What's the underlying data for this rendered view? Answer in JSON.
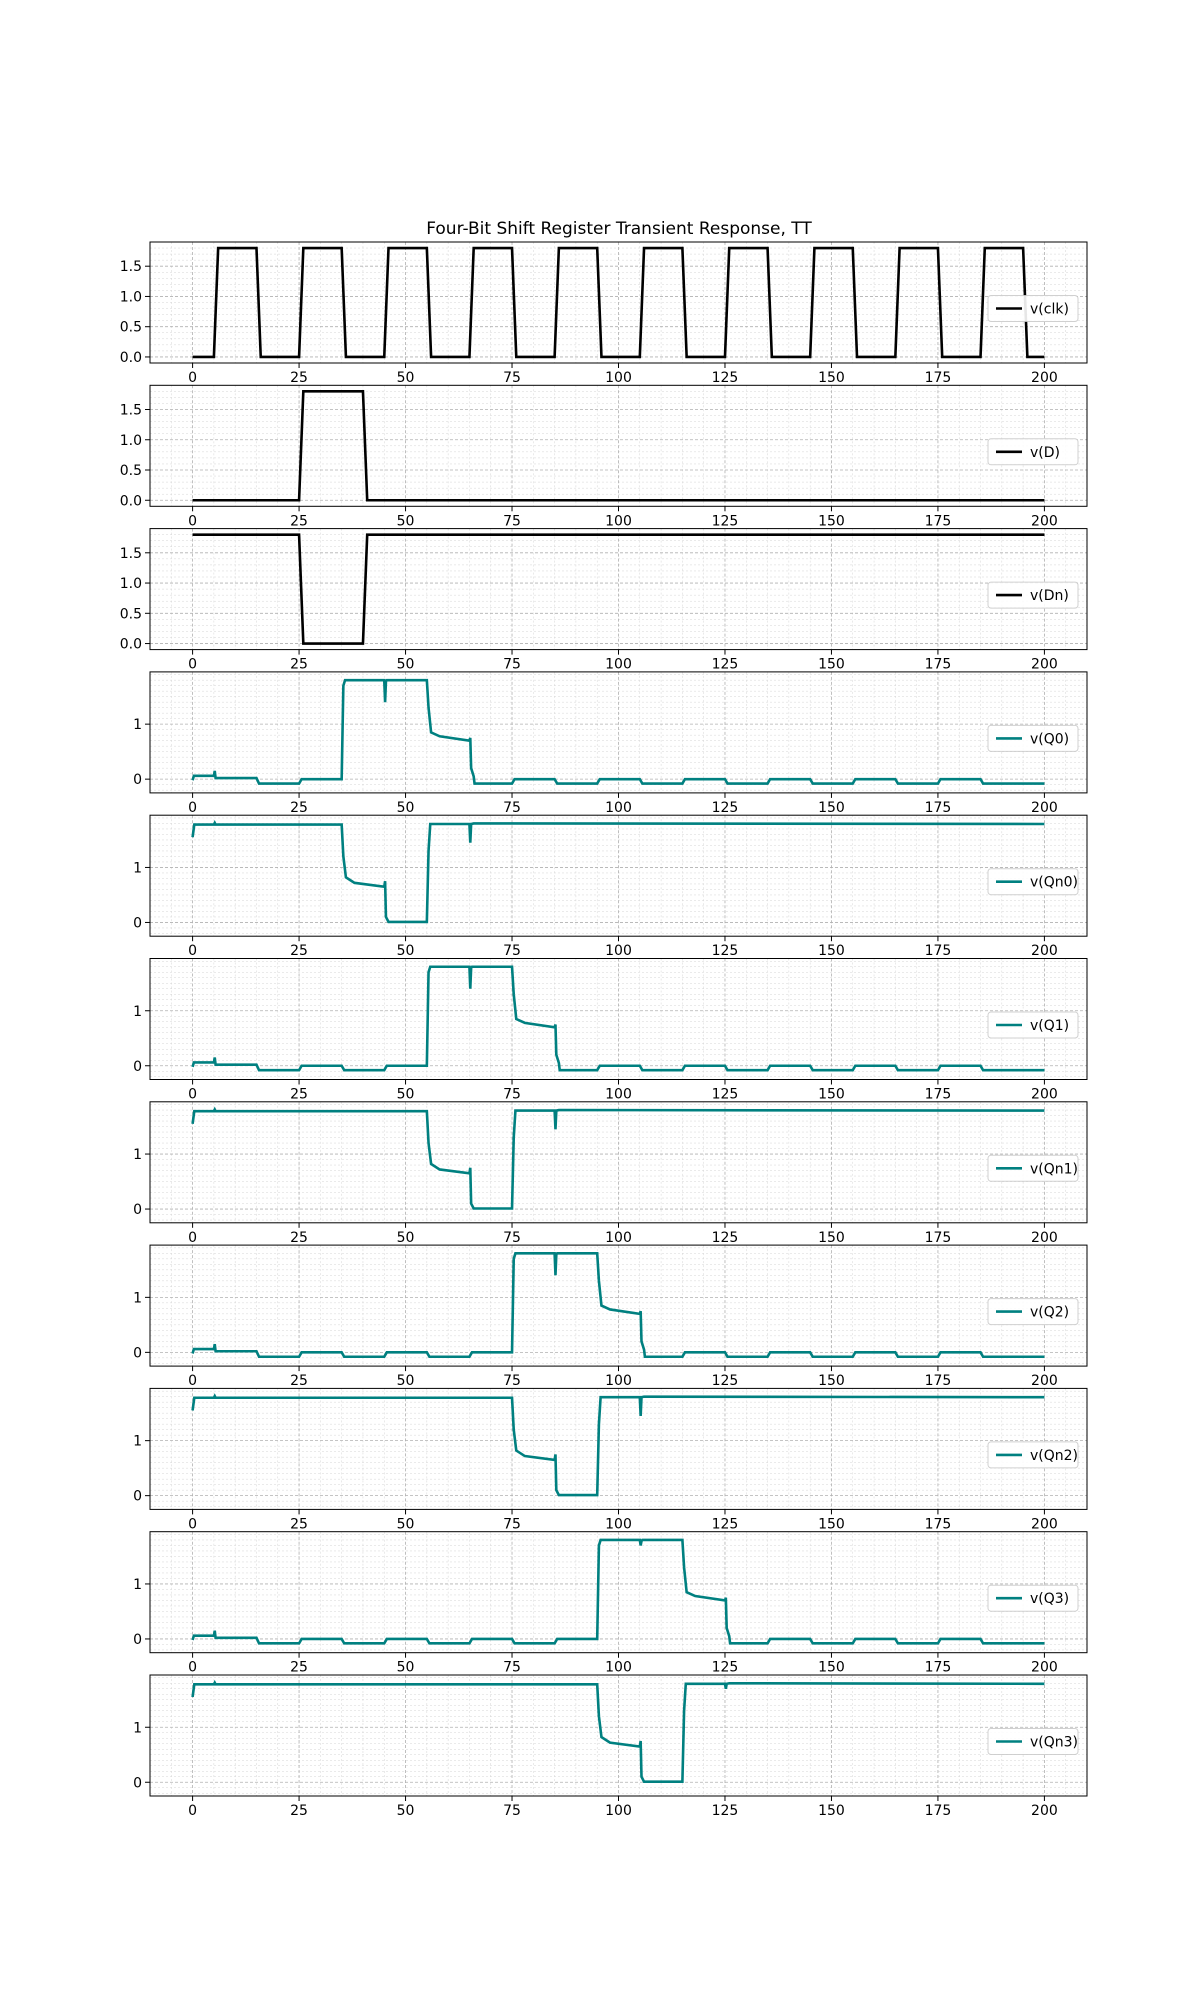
{
  "chart_data": {
    "type": "line",
    "title": "Four-Bit Shift Register Transient Response, TT",
    "xlabel": "",
    "ylabel": "",
    "xlim": [
      -10,
      210
    ],
    "xticks": [
      "0",
      "25",
      "50",
      "75",
      "100",
      "125",
      "150",
      "175",
      "200"
    ],
    "grid": true,
    "legend_placement": "right",
    "panels": [
      {
        "name": "v(clk)",
        "color": "#000000",
        "ylim": [
          -0.1,
          1.9
        ],
        "yticks": [
          "0.0",
          "0.5",
          "1.0",
          "1.5"
        ],
        "x": [
          0,
          5,
          6,
          15,
          16,
          25,
          26,
          35,
          36,
          45,
          46,
          55,
          56,
          65,
          66,
          75,
          76,
          85,
          86,
          95,
          96,
          105,
          106,
          115,
          116,
          125,
          126,
          135,
          136,
          145,
          146,
          155,
          156,
          165,
          166,
          175,
          176,
          185,
          186,
          195,
          196,
          200
        ],
        "y": [
          0,
          0,
          1.8,
          1.8,
          0,
          0,
          1.8,
          1.8,
          0,
          0,
          1.8,
          1.8,
          0,
          0,
          1.8,
          1.8,
          0,
          0,
          1.8,
          1.8,
          0,
          0,
          1.8,
          1.8,
          0,
          0,
          1.8,
          1.8,
          0,
          0,
          1.8,
          1.8,
          0,
          0,
          1.8,
          1.8,
          0,
          0,
          1.8,
          1.8,
          0,
          0
        ]
      },
      {
        "name": "v(D)",
        "color": "#000000",
        "ylim": [
          -0.1,
          1.9
        ],
        "yticks": [
          "0.0",
          "0.5",
          "1.0",
          "1.5"
        ],
        "x": [
          0,
          25,
          26,
          40,
          41,
          200
        ],
        "y": [
          0,
          0,
          1.8,
          1.8,
          0,
          0
        ]
      },
      {
        "name": "v(Dn)",
        "color": "#000000",
        "ylim": [
          -0.1,
          1.9
        ],
        "yticks": [
          "0.0",
          "0.5",
          "1.0",
          "1.5"
        ],
        "x": [
          0,
          25,
          26,
          40,
          41,
          200
        ],
        "y": [
          1.8,
          1.8,
          0,
          0,
          1.8,
          1.8
        ]
      },
      {
        "name": "v(Q0)",
        "color": "#008080",
        "ylim": [
          -0.25,
          1.95
        ],
        "yticks": [
          "0",
          "1"
        ],
        "x": [
          0,
          0.3,
          5,
          5.2,
          5.4,
          15,
          15.6,
          25,
          25.6,
          35,
          35.4,
          35.8,
          45,
          45.2,
          45.4,
          45.6,
          55,
          55.4,
          56,
          58,
          65,
          65.2,
          65.4,
          66,
          66.2,
          75,
          75.6,
          85,
          85.6,
          95,
          95.6,
          105,
          105.6,
          115,
          115.6,
          125,
          125.6,
          135,
          135.6,
          145,
          145.6,
          155,
          155.6,
          165,
          165.6,
          175,
          175.6,
          185,
          185.6,
          195,
          195.6,
          200
        ],
        "y": [
          -0.02,
          0.06,
          0.06,
          0.15,
          0.02,
          0.02,
          -0.08,
          -0.08,
          0.0,
          0.0,
          1.7,
          1.8,
          1.8,
          1.4,
          1.78,
          1.8,
          1.8,
          1.3,
          0.85,
          0.78,
          0.7,
          0.75,
          0.2,
          0.05,
          -0.08,
          -0.08,
          0.0,
          0.0,
          -0.08,
          -0.08,
          0.0,
          0.0,
          -0.08,
          -0.08,
          0.0,
          0.0,
          -0.08,
          -0.08,
          0.0,
          0.0,
          -0.08,
          -0.08,
          0.0,
          0.0,
          -0.08,
          -0.08,
          0.0,
          0.0,
          -0.08,
          -0.08,
          -0.08,
          -0.08
        ]
      },
      {
        "name": "v(Qn0)",
        "color": "#008080",
        "ylim": [
          -0.25,
          1.95
        ],
        "yticks": [
          "0",
          "1"
        ],
        "x": [
          0,
          0.4,
          5,
          5.2,
          5.4,
          35,
          35.4,
          36,
          38,
          45,
          45.2,
          45.4,
          46,
          55,
          55.4,
          55.8,
          65,
          65.2,
          65.4,
          66,
          200
        ],
        "y": [
          1.55,
          1.78,
          1.78,
          1.81,
          1.78,
          1.78,
          1.2,
          0.82,
          0.72,
          0.65,
          0.75,
          0.1,
          0.01,
          0.01,
          1.3,
          1.79,
          1.79,
          1.45,
          1.79,
          1.8,
          1.79
        ]
      },
      {
        "name": "v(Q1)",
        "color": "#008080",
        "ylim": [
          -0.25,
          1.95
        ],
        "yticks": [
          "0",
          "1"
        ],
        "x": [
          0,
          0.3,
          5,
          5.2,
          5.4,
          15,
          15.6,
          25,
          25.6,
          35,
          35.6,
          45,
          45.6,
          55,
          55.4,
          55.8,
          65,
          65.2,
          65.4,
          65.6,
          75,
          75.4,
          76,
          78,
          85,
          85.2,
          85.4,
          86,
          86.2,
          95,
          95.6,
          105,
          105.6,
          115,
          115.6,
          125,
          125.6,
          135,
          135.6,
          145,
          145.6,
          155,
          155.6,
          165,
          165.6,
          175,
          175.6,
          185,
          185.6,
          195,
          195.6,
          200
        ],
        "y": [
          -0.02,
          0.06,
          0.06,
          0.15,
          0.02,
          0.02,
          -0.08,
          -0.08,
          0.0,
          0.0,
          -0.08,
          -0.08,
          0.0,
          0.0,
          1.7,
          1.8,
          1.8,
          1.4,
          1.78,
          1.8,
          1.8,
          1.3,
          0.85,
          0.78,
          0.7,
          0.75,
          0.2,
          0.05,
          -0.08,
          -0.08,
          0.0,
          0.0,
          -0.08,
          -0.08,
          0.0,
          0.0,
          -0.08,
          -0.08,
          0.0,
          0.0,
          -0.08,
          -0.08,
          0.0,
          0.0,
          -0.08,
          -0.08,
          0.0,
          0.0,
          -0.08,
          -0.08,
          -0.08,
          -0.08
        ]
      },
      {
        "name": "v(Qn1)",
        "color": "#008080",
        "ylim": [
          -0.25,
          1.95
        ],
        "yticks": [
          "0",
          "1"
        ],
        "x": [
          0,
          0.4,
          5,
          5.2,
          5.4,
          55,
          55.4,
          56,
          58,
          65,
          65.2,
          65.4,
          66,
          75,
          75.4,
          75.8,
          85,
          85.2,
          85.4,
          86,
          200
        ],
        "y": [
          1.55,
          1.78,
          1.78,
          1.81,
          1.78,
          1.78,
          1.2,
          0.82,
          0.72,
          0.65,
          0.75,
          0.1,
          0.01,
          0.01,
          1.3,
          1.79,
          1.79,
          1.45,
          1.79,
          1.8,
          1.79
        ]
      },
      {
        "name": "v(Q2)",
        "color": "#008080",
        "ylim": [
          -0.25,
          1.95
        ],
        "yticks": [
          "0",
          "1"
        ],
        "x": [
          0,
          0.3,
          5,
          5.2,
          5.4,
          15,
          15.6,
          25,
          25.6,
          35,
          35.6,
          45,
          45.6,
          55,
          55.6,
          65,
          65.6,
          75,
          75.4,
          75.8,
          85,
          85.2,
          85.4,
          85.6,
          95,
          95.4,
          96,
          98,
          105,
          105.2,
          105.4,
          106,
          106.2,
          115,
          115.6,
          125,
          125.6,
          135,
          135.6,
          145,
          145.6,
          155,
          155.6,
          165,
          165.6,
          175,
          175.6,
          185,
          185.6,
          195,
          195.6,
          200
        ],
        "y": [
          -0.02,
          0.06,
          0.06,
          0.15,
          0.02,
          0.02,
          -0.08,
          -0.08,
          0.0,
          0.0,
          -0.08,
          -0.08,
          0.0,
          0.0,
          -0.08,
          -0.08,
          0.0,
          0.0,
          1.7,
          1.8,
          1.8,
          1.4,
          1.78,
          1.8,
          1.8,
          1.3,
          0.85,
          0.78,
          0.7,
          0.75,
          0.2,
          0.05,
          -0.08,
          -0.08,
          0.0,
          0.0,
          -0.08,
          -0.08,
          0.0,
          0.0,
          -0.08,
          -0.08,
          0.0,
          0.0,
          -0.08,
          -0.08,
          0.0,
          0.0,
          -0.08,
          -0.08,
          -0.08,
          -0.08
        ]
      },
      {
        "name": "v(Qn2)",
        "color": "#008080",
        "ylim": [
          -0.25,
          1.95
        ],
        "yticks": [
          "0",
          "1"
        ],
        "x": [
          0,
          0.4,
          5,
          5.2,
          5.4,
          75,
          75.4,
          76,
          78,
          85,
          85.2,
          85.4,
          86,
          95,
          95.4,
          95.8,
          105,
          105.2,
          105.4,
          106,
          200
        ],
        "y": [
          1.55,
          1.78,
          1.78,
          1.81,
          1.78,
          1.78,
          1.2,
          0.82,
          0.72,
          0.65,
          0.75,
          0.1,
          0.01,
          0.01,
          1.3,
          1.79,
          1.79,
          1.45,
          1.79,
          1.8,
          1.79
        ]
      },
      {
        "name": "v(Q3)",
        "color": "#008080",
        "ylim": [
          -0.25,
          1.95
        ],
        "yticks": [
          "0",
          "1"
        ],
        "x": [
          0,
          0.3,
          5,
          5.2,
          5.4,
          15,
          15.6,
          25,
          25.6,
          35,
          35.6,
          45,
          45.6,
          55,
          55.6,
          65,
          65.6,
          75,
          75.6,
          85,
          85.6,
          95,
          95.4,
          95.8,
          105,
          105.2,
          105.4,
          105.6,
          115,
          115.4,
          116,
          118,
          125,
          125.2,
          125.4,
          126,
          126.2,
          135,
          135.6,
          145,
          145.6,
          155,
          155.6,
          165,
          165.6,
          175,
          175.6,
          185,
          185.6,
          195,
          195.6,
          200
        ],
        "y": [
          -0.02,
          0.06,
          0.06,
          0.15,
          0.02,
          0.02,
          -0.08,
          -0.08,
          0.0,
          0.0,
          -0.08,
          -0.08,
          0.0,
          0.0,
          -0.08,
          -0.08,
          0.0,
          0.0,
          -0.08,
          -0.08,
          0.0,
          0.0,
          1.7,
          1.8,
          1.8,
          1.7,
          1.78,
          1.8,
          1.8,
          1.3,
          0.85,
          0.78,
          0.7,
          0.75,
          0.2,
          0.05,
          -0.08,
          -0.08,
          0.0,
          0.0,
          -0.08,
          -0.08,
          0.0,
          0.0,
          -0.08,
          -0.08,
          0.0,
          0.0,
          -0.08,
          -0.08,
          -0.08,
          -0.08
        ]
      },
      {
        "name": "v(Qn3)",
        "color": "#008080",
        "ylim": [
          -0.25,
          1.95
        ],
        "yticks": [
          "0",
          "1"
        ],
        "x": [
          0,
          0.4,
          5,
          5.2,
          5.4,
          95,
          95.4,
          96,
          98,
          105,
          105.2,
          105.4,
          106,
          115,
          115.4,
          115.8,
          125,
          125.2,
          125.4,
          126,
          200
        ],
        "y": [
          1.55,
          1.78,
          1.78,
          1.81,
          1.78,
          1.78,
          1.2,
          0.82,
          0.72,
          0.65,
          0.75,
          0.1,
          0.01,
          0.01,
          1.3,
          1.79,
          1.79,
          1.7,
          1.79,
          1.8,
          1.79
        ]
      }
    ]
  }
}
